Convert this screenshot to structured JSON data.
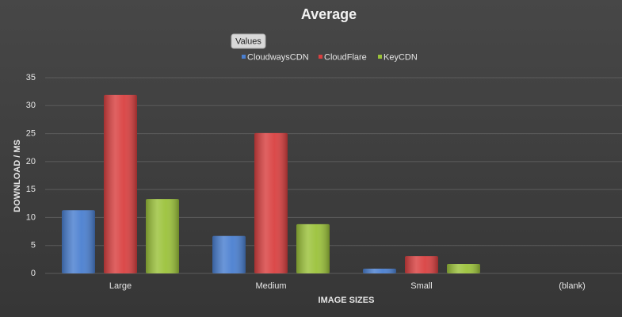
{
  "chart_data": {
    "type": "bar",
    "title": "Average",
    "field_button": "Values",
    "x_label": "IMAGE SIZES",
    "y_label": "DOWNLOAD / MS",
    "categories": [
      "Large",
      "Medium",
      "Small",
      "(blank)"
    ],
    "series": [
      {
        "name": "CloudwaysCDN",
        "color": "#4a7fd0",
        "values": [
          11.3,
          6.7,
          0.85,
          null
        ]
      },
      {
        "name": "CloudFlare",
        "color": "#d94040",
        "values": [
          31.9,
          25.1,
          3.1,
          null
        ]
      },
      {
        "name": "KeyCDN",
        "color": "#9bc23a",
        "values": [
          13.3,
          8.8,
          1.7,
          null
        ]
      }
    ],
    "ylim": [
      0,
      35
    ],
    "yticks": [
      0,
      5,
      10,
      15,
      20,
      25,
      30,
      35
    ],
    "grid": true,
    "legend": "top"
  }
}
